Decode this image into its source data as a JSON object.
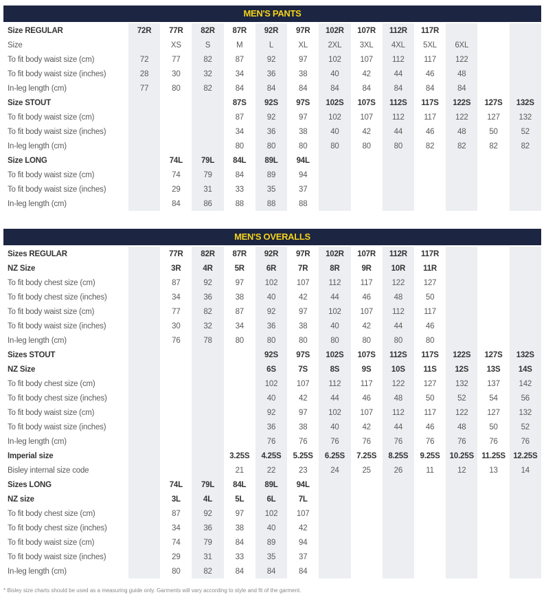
{
  "pants": {
    "title": "MEN'S PANTS",
    "rows": [
      {
        "label": "Size REGULAR",
        "bold": true,
        "cells": [
          "72R",
          "77R",
          "82R",
          "87R",
          "92R",
          "97R",
          "102R",
          "107R",
          "112R",
          "117R",
          "",
          "",
          ""
        ]
      },
      {
        "label": "Size",
        "bold": false,
        "cells": [
          "",
          "XS",
          "S",
          "M",
          "L",
          "XL",
          "2XL",
          "3XL",
          "4XL",
          "5XL",
          "6XL",
          "",
          ""
        ]
      },
      {
        "label": "To fit body waist size (cm)",
        "bold": false,
        "cells": [
          "72",
          "77",
          "82",
          "87",
          "92",
          "97",
          "102",
          "107",
          "112",
          "117",
          "122",
          "",
          ""
        ]
      },
      {
        "label": "To fit body waist size (inches)",
        "bold": false,
        "cells": [
          "28",
          "30",
          "32",
          "34",
          "36",
          "38",
          "40",
          "42",
          "44",
          "46",
          "48",
          "",
          ""
        ]
      },
      {
        "label": "In-leg length (cm)",
        "bold": false,
        "cells": [
          "77",
          "80",
          "82",
          "84",
          "84",
          "84",
          "84",
          "84",
          "84",
          "84",
          "84",
          "",
          ""
        ]
      },
      {
        "label": "Size STOUT",
        "bold": true,
        "cells": [
          "",
          "",
          "",
          "87S",
          "92S",
          "97S",
          "102S",
          "107S",
          "112S",
          "117S",
          "122S",
          "127S",
          "132S"
        ]
      },
      {
        "label": "To fit body waist size (cm)",
        "bold": false,
        "cells": [
          "",
          "",
          "",
          "87",
          "92",
          "97",
          "102",
          "107",
          "112",
          "117",
          "122",
          "127",
          "132"
        ]
      },
      {
        "label": "To fit body waist size (inches)",
        "bold": false,
        "cells": [
          "",
          "",
          "",
          "34",
          "36",
          "38",
          "40",
          "42",
          "44",
          "46",
          "48",
          "50",
          "52"
        ]
      },
      {
        "label": "In-leg length (cm)",
        "bold": false,
        "cells": [
          "",
          "",
          "",
          "80",
          "80",
          "80",
          "80",
          "80",
          "80",
          "82",
          "82",
          "82",
          "82"
        ]
      },
      {
        "label": "Size LONG",
        "bold": true,
        "cells": [
          "",
          "74L",
          "79L",
          "84L",
          "89L",
          "94L",
          "",
          "",
          "",
          "",
          "",
          "",
          ""
        ]
      },
      {
        "label": "To fit body waist size (cm)",
        "bold": false,
        "cells": [
          "",
          "74",
          "79",
          "84",
          "89",
          "94",
          "",
          "",
          "",
          "",
          "",
          "",
          ""
        ]
      },
      {
        "label": "To fit body waist size (inches)",
        "bold": false,
        "cells": [
          "",
          "29",
          "31",
          "33",
          "35",
          "37",
          "",
          "",
          "",
          "",
          "",
          "",
          ""
        ]
      },
      {
        "label": "In-leg length (cm)",
        "bold": false,
        "cells": [
          "",
          "84",
          "86",
          "88",
          "88",
          "88",
          "",
          "",
          "",
          "",
          "",
          "",
          ""
        ]
      }
    ]
  },
  "overalls": {
    "title": "MEN'S OVERALLS",
    "rows": [
      {
        "label": "Sizes REGULAR",
        "bold": true,
        "cells": [
          "",
          "77R",
          "82R",
          "87R",
          "92R",
          "97R",
          "102R",
          "107R",
          "112R",
          "117R",
          "",
          "",
          ""
        ]
      },
      {
        "label": "NZ Size",
        "bold": true,
        "cells": [
          "",
          "3R",
          "4R",
          "5R",
          "6R",
          "7R",
          "8R",
          "9R",
          "10R",
          "11R",
          "",
          "",
          ""
        ]
      },
      {
        "label": "To fit body chest size (cm)",
        "bold": false,
        "cells": [
          "",
          "87",
          "92",
          "97",
          "102",
          "107",
          "112",
          "117",
          "122",
          "127",
          "",
          "",
          ""
        ]
      },
      {
        "label": "To fit body chest size (inches)",
        "bold": false,
        "cells": [
          "",
          "34",
          "36",
          "38",
          "40",
          "42",
          "44",
          "46",
          "48",
          "50",
          "",
          "",
          ""
        ]
      },
      {
        "label": "To fit body waist size (cm)",
        "bold": false,
        "cells": [
          "",
          "77",
          "82",
          "87",
          "92",
          "97",
          "102",
          "107",
          "112",
          "117",
          "",
          "",
          ""
        ]
      },
      {
        "label": "To fit body waist size (inches)",
        "bold": false,
        "cells": [
          "",
          "30",
          "32",
          "34",
          "36",
          "38",
          "40",
          "42",
          "44",
          "46",
          "",
          "",
          ""
        ]
      },
      {
        "label": "In-leg length (cm)",
        "bold": false,
        "cells": [
          "",
          "76",
          "78",
          "80",
          "80",
          "80",
          "80",
          "80",
          "80",
          "80",
          "",
          "",
          ""
        ]
      },
      {
        "label": "Sizes STOUT",
        "bold": true,
        "cells": [
          "",
          "",
          "",
          "",
          "92S",
          "97S",
          "102S",
          "107S",
          "112S",
          "117S",
          "122S",
          "127S",
          "132S"
        ]
      },
      {
        "label": "NZ Size",
        "bold": true,
        "cells": [
          "",
          "",
          "",
          "",
          "6S",
          "7S",
          "8S",
          "9S",
          "10S",
          "11S",
          "12S",
          "13S",
          "14S"
        ]
      },
      {
        "label": "To fit body chest size (cm)",
        "bold": false,
        "cells": [
          "",
          "",
          "",
          "",
          "102",
          "107",
          "112",
          "117",
          "122",
          "127",
          "132",
          "137",
          "142"
        ]
      },
      {
        "label": "To fit body chest size (inches)",
        "bold": false,
        "cells": [
          "",
          "",
          "",
          "",
          "40",
          "42",
          "44",
          "46",
          "48",
          "50",
          "52",
          "54",
          "56"
        ]
      },
      {
        "label": "To fit body waist size (cm)",
        "bold": false,
        "cells": [
          "",
          "",
          "",
          "",
          "92",
          "97",
          "102",
          "107",
          "112",
          "117",
          "122",
          "127",
          "132"
        ]
      },
      {
        "label": "To fit body waist size (inches)",
        "bold": false,
        "cells": [
          "",
          "",
          "",
          "",
          "36",
          "38",
          "40",
          "42",
          "44",
          "46",
          "48",
          "50",
          "52"
        ]
      },
      {
        "label": "In-leg length (cm)",
        "bold": false,
        "cells": [
          "",
          "",
          "",
          "",
          "76",
          "76",
          "76",
          "76",
          "76",
          "76",
          "76",
          "76",
          "76"
        ]
      },
      {
        "label": "Imperial size",
        "bold": true,
        "cells": [
          "",
          "",
          "",
          "3.25S",
          "4.25S",
          "5.25S",
          "6.25S",
          "7.25S",
          "8.25S",
          "9.25S",
          "10.25S",
          "11.25S",
          "12.25S"
        ]
      },
      {
        "label": "Bisley internal size code",
        "bold": false,
        "cells": [
          "",
          "",
          "",
          "21",
          "22",
          "23",
          "24",
          "25",
          "26",
          "11",
          "12",
          "13",
          "14"
        ]
      },
      {
        "label": "Sizes LONG",
        "bold": true,
        "cells": [
          "",
          "74L",
          "79L",
          "84L",
          "89L",
          "94L",
          "",
          "",
          "",
          "",
          "",
          "",
          ""
        ]
      },
      {
        "label": "NZ size",
        "bold": true,
        "cells": [
          "",
          "3L",
          "4L",
          "5L",
          "6L",
          "7L",
          "",
          "",
          "",
          "",
          "",
          "",
          ""
        ]
      },
      {
        "label": "To fit body chest size (cm)",
        "bold": false,
        "cells": [
          "",
          "87",
          "92",
          "97",
          "102",
          "107",
          "",
          "",
          "",
          "",
          "",
          "",
          ""
        ]
      },
      {
        "label": "To fit body chest size (inches)",
        "bold": false,
        "cells": [
          "",
          "34",
          "36",
          "38",
          "40",
          "42",
          "",
          "",
          "",
          "",
          "",
          "",
          ""
        ]
      },
      {
        "label": "To fit body waist size (cm)",
        "bold": false,
        "cells": [
          "",
          "74",
          "79",
          "84",
          "89",
          "94",
          "",
          "",
          "",
          "",
          "",
          "",
          ""
        ]
      },
      {
        "label": "To fit body waist size (inches)",
        "bold": false,
        "cells": [
          "",
          "29",
          "31",
          "33",
          "35",
          "37",
          "",
          "",
          "",
          "",
          "",
          "",
          ""
        ]
      },
      {
        "label": "In-leg length (cm)",
        "bold": false,
        "cells": [
          "",
          "80",
          "82",
          "84",
          "84",
          "84",
          "",
          "",
          "",
          "",
          "",
          "",
          ""
        ]
      }
    ]
  },
  "footnote": "* Bisley size charts should be used as a measuring guide only. Garments will vary according to style and fit of the garment.",
  "colors": {
    "header_bg": "#1c2541",
    "header_text": "#f5d21a",
    "shade": "#eceef1"
  }
}
